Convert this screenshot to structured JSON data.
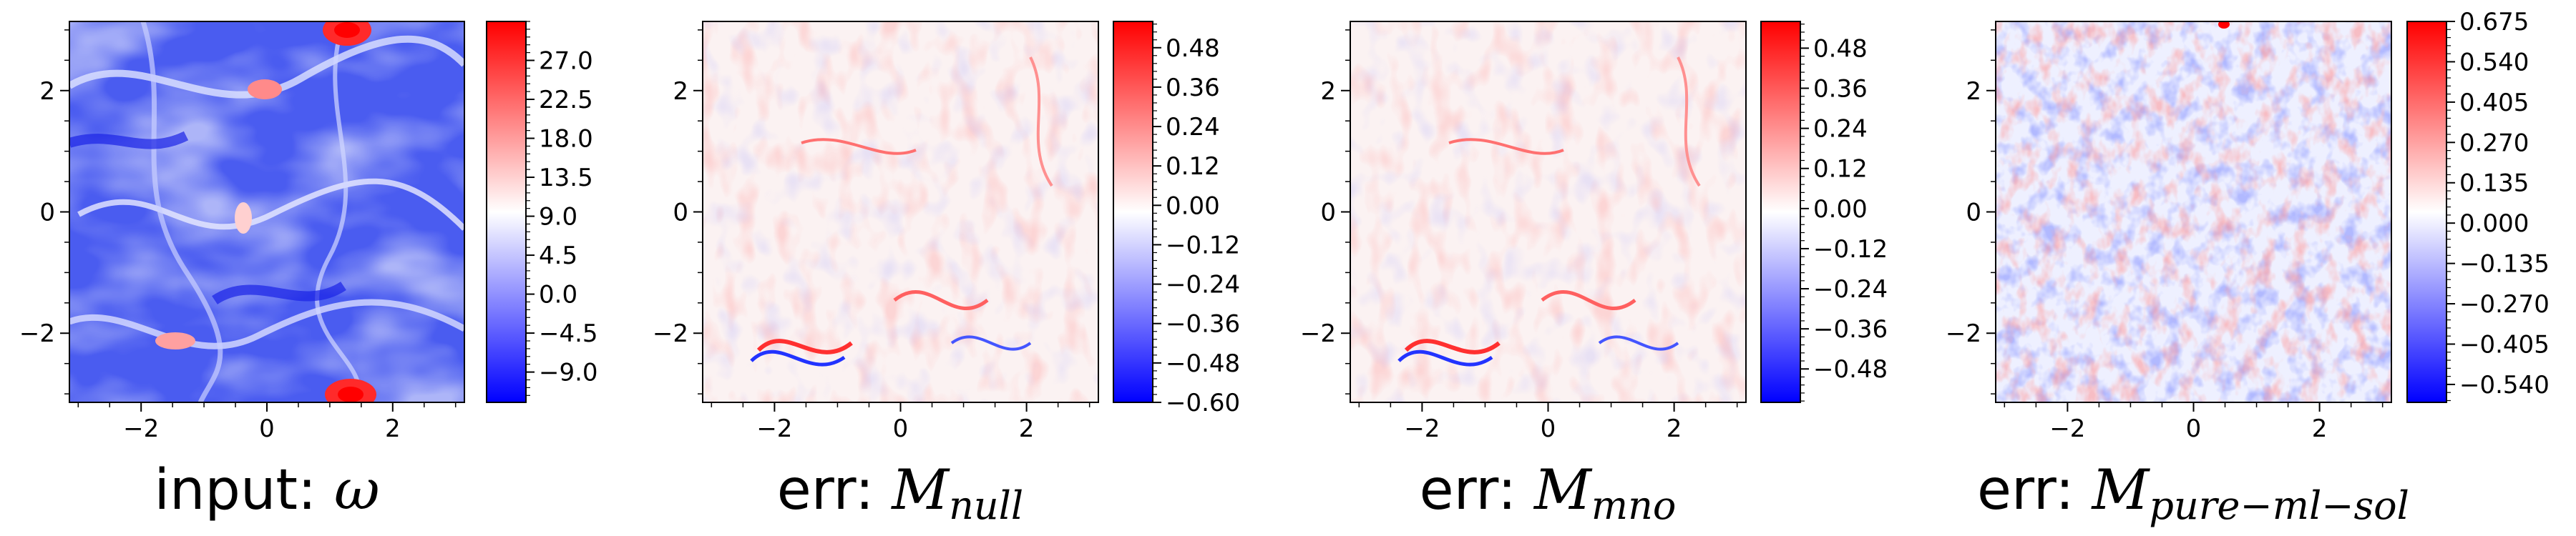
{
  "chart_data": [
    {
      "type": "heatmap",
      "title_prefix": "input: ",
      "title_symbol": "ω",
      "title_subscript": "",
      "x_ticks": [
        -2,
        0,
        2
      ],
      "y_ticks": [
        2,
        0,
        -2
      ],
      "xlim": [
        -3.14,
        3.14
      ],
      "ylim": [
        -3.14,
        3.14
      ],
      "field": "vorticity",
      "colormap": "bwr",
      "colorbar": {
        "min": -12.5,
        "max": 31.5,
        "ticks": [
          27.0,
          22.5,
          18.0,
          13.5,
          9.0,
          4.5,
          0.0,
          -4.5,
          -9.0
        ],
        "labels": [
          "27.0",
          "22.5",
          "18.0",
          "13.5",
          "9.0",
          "4.5",
          "0.0",
          "−4.5",
          "−9.0"
        ]
      }
    },
    {
      "type": "heatmap",
      "title_prefix": "err: ",
      "title_symbol": "M",
      "title_subscript": "null",
      "x_ticks": [
        -2,
        0,
        2
      ],
      "y_ticks": [
        2,
        0,
        -2
      ],
      "xlim": [
        -3.14,
        3.14
      ],
      "ylim": [
        -3.14,
        3.14
      ],
      "field": "error",
      "colormap": "bwr",
      "colorbar": {
        "min": -0.6,
        "max": 0.56,
        "ticks": [
          0.48,
          0.36,
          0.24,
          0.12,
          0.0,
          -0.12,
          -0.24,
          -0.36,
          -0.48,
          -0.6
        ],
        "labels": [
          "0.48",
          "0.36",
          "0.24",
          "0.12",
          "0.00",
          "−0.12",
          "−0.24",
          "−0.36",
          "−0.48",
          "−0.60"
        ]
      }
    },
    {
      "type": "heatmap",
      "title_prefix": "err: ",
      "title_symbol": "M",
      "title_subscript": "mno",
      "x_ticks": [
        -2,
        0,
        2
      ],
      "y_ticks": [
        2,
        0,
        -2
      ],
      "xlim": [
        -3.14,
        3.14
      ],
      "ylim": [
        -3.14,
        3.14
      ],
      "field": "error",
      "colormap": "bwr",
      "colorbar": {
        "min": -0.58,
        "max": 0.56,
        "ticks": [
          0.48,
          0.36,
          0.24,
          0.12,
          0.0,
          -0.12,
          -0.24,
          -0.36,
          -0.48
        ],
        "labels": [
          "0.48",
          "0.36",
          "0.24",
          "0.12",
          "0.00",
          "−0.12",
          "−0.24",
          "−0.36",
          "−0.48"
        ]
      }
    },
    {
      "type": "heatmap",
      "title_prefix": "err: ",
      "title_symbol": "M",
      "title_subscript": "pure−ml−sol",
      "x_ticks": [
        -2,
        0,
        2
      ],
      "y_ticks": [
        2,
        0,
        -2
      ],
      "xlim": [
        -3.14,
        3.14
      ],
      "ylim": [
        -3.14,
        3.14
      ],
      "field": "error",
      "colormap": "bwr",
      "colorbar": {
        "min": -0.6,
        "max": 0.675,
        "ticks": [
          0.675,
          0.54,
          0.405,
          0.27,
          0.135,
          0.0,
          -0.135,
          -0.27,
          -0.405,
          -0.54
        ],
        "labels": [
          "0.675",
          "0.540",
          "0.405",
          "0.270",
          "0.135",
          "0.000",
          "−0.135",
          "−0.270",
          "−0.405",
          "−0.540"
        ]
      }
    }
  ]
}
